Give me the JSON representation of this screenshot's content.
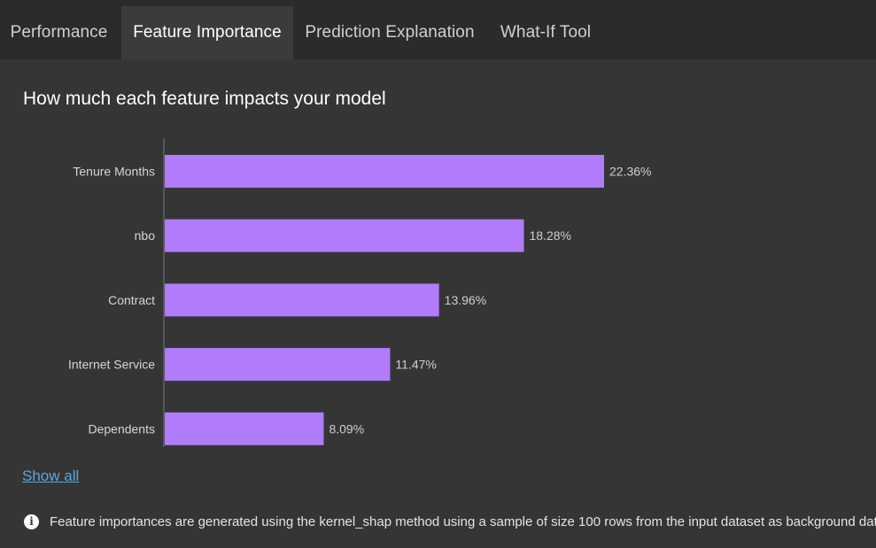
{
  "tabs": [
    {
      "label": "Performance",
      "active": false
    },
    {
      "label": "Feature Importance",
      "active": true
    },
    {
      "label": "Prediction Explanation",
      "active": false
    },
    {
      "label": "What-If Tool",
      "active": false
    }
  ],
  "page": {
    "title": "How much each feature impacts your model",
    "show_all_label": "Show all",
    "info_text": "Feature importances are generated using the kernel_shap method using a sample of size 100 rows from the input dataset as background data",
    "info_icon": "info-icon"
  },
  "colors": {
    "bar": "#b07cfc",
    "background": "#353535",
    "tabbar": "#2b2b2b",
    "active_tab": "#3b3b3b",
    "link": "#5aa6e0"
  },
  "chart_data": {
    "type": "bar",
    "orientation": "horizontal",
    "title": "",
    "xlabel": "",
    "ylabel": "",
    "categories": [
      "Tenure Months",
      "nbo",
      "Contract",
      "Internet Service",
      "Dependents"
    ],
    "values": [
      22.36,
      18.28,
      13.96,
      11.47,
      8.09
    ],
    "value_labels": [
      "22.36%",
      "18.28%",
      "13.96%",
      "11.47%",
      "8.09%"
    ],
    "unit": "%",
    "xlim": [
      0,
      22.36
    ],
    "grid": false,
    "legend": "none"
  }
}
